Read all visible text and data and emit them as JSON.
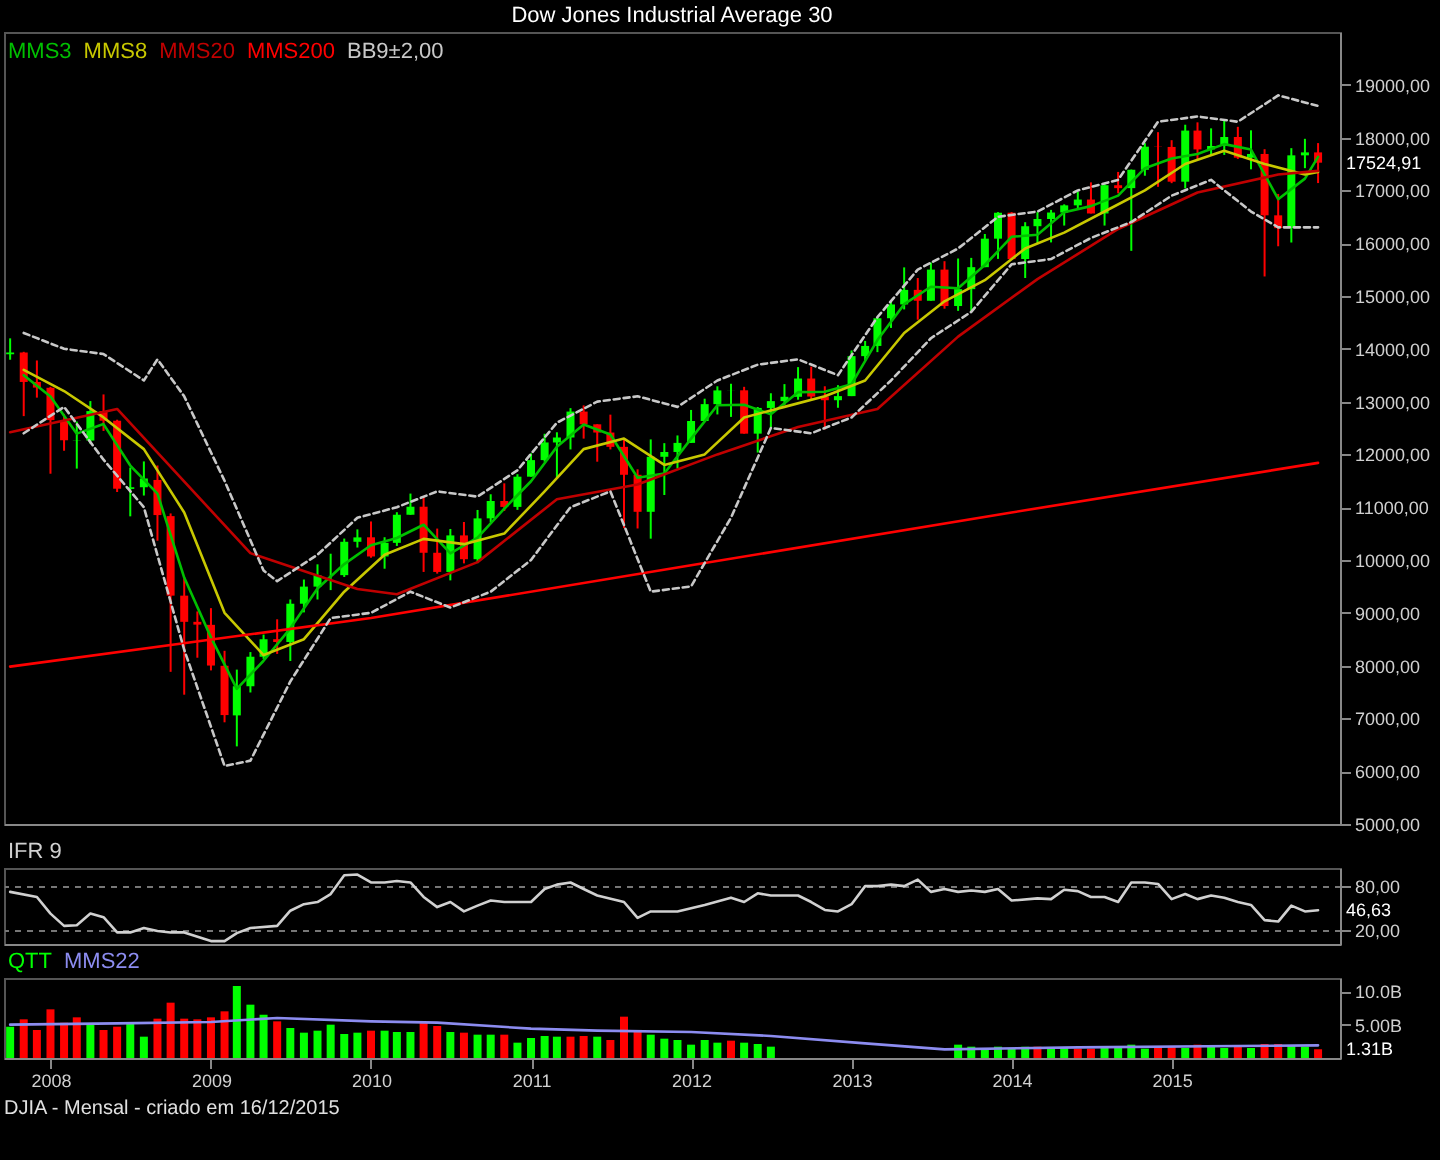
{
  "chart_data": [
    {
      "type": "candlestick",
      "title": "Dow Jones Industrial Average 30",
      "legend": "top left",
      "tick_labels": "y",
      "xlim": [
        "2007-09-17",
        "2016-01-20"
      ],
      "xticks": [
        "2008",
        "2009",
        "2010",
        "2011",
        "2012",
        "2013",
        "2014",
        "2015"
      ],
      "ylim": [
        5000,
        20000
      ],
      "yticks": [
        {
          "value": 5000,
          "label": "5000,00"
        },
        {
          "value": 6000,
          "label": "6000,00"
        },
        {
          "value": 7000,
          "label": "7000,00"
        },
        {
          "value": 8000,
          "label": "8000,00"
        },
        {
          "value": 9000,
          "label": "9000,00"
        },
        {
          "value": 10000,
          "label": "10000,00"
        },
        {
          "value": 11000,
          "label": "11000,00"
        },
        {
          "value": 12000,
          "label": "12000,00"
        },
        {
          "value": 13000,
          "label": "13000,00"
        },
        {
          "value": 14000,
          "label": "14000,00"
        },
        {
          "value": 15000,
          "label": "15000,00"
        },
        {
          "value": 16000,
          "label": "16000,00"
        },
        {
          "value": 17000,
          "label": "17000,00"
        },
        {
          "value": 18000,
          "label": "18000,00"
        },
        {
          "value": 19000,
          "label": "19000,00"
        }
      ],
      "x": [
        "2007-10",
        "2007-11",
        "2007-12",
        "2008-01",
        "2008-02",
        "2008-03",
        "2008-04",
        "2008-05",
        "2008-06",
        "2008-07",
        "2008-08",
        "2008-09",
        "2008-10",
        "2008-11",
        "2008-12",
        "2009-01",
        "2009-02",
        "2009-03",
        "2009-04",
        "2009-05",
        "2009-06",
        "2009-07",
        "2009-08",
        "2009-09",
        "2009-10",
        "2009-11",
        "2009-12",
        "2010-01",
        "2010-02",
        "2010-03",
        "2010-04",
        "2010-05",
        "2010-06",
        "2010-07",
        "2010-08",
        "2010-09",
        "2010-10",
        "2010-11",
        "2010-12",
        "2011-01",
        "2011-02",
        "2011-03",
        "2011-04",
        "2011-05",
        "2011-06",
        "2011-07",
        "2011-08",
        "2011-09",
        "2011-10",
        "2011-11",
        "2011-12",
        "2012-01",
        "2012-02",
        "2012-03",
        "2012-04",
        "2012-05",
        "2012-06",
        "2012-07",
        "2012-08",
        "2012-09",
        "2012-10",
        "2012-11",
        "2012-12",
        "2013-01",
        "2013-02",
        "2013-03",
        "2013-04",
        "2013-05",
        "2013-06",
        "2013-07",
        "2013-08",
        "2013-09",
        "2013-10",
        "2013-11",
        "2013-12",
        "2014-01",
        "2014-02",
        "2014-03",
        "2014-04",
        "2014-05",
        "2014-06",
        "2014-07",
        "2014-08",
        "2014-09",
        "2014-10",
        "2014-11",
        "2014-12",
        "2015-01",
        "2015-02",
        "2015-03",
        "2015-04",
        "2015-05",
        "2015-06",
        "2015-07",
        "2015-08",
        "2015-09",
        "2015-10",
        "2015-11",
        "2015-12"
      ],
      "ohlc": [
        [
          13896,
          14198,
          13793,
          13930
        ],
        [
          13930,
          13943,
          12725,
          13372
        ],
        [
          13372,
          13779,
          13075,
          13265
        ],
        [
          13262,
          13279,
          11634,
          12650
        ],
        [
          12638,
          12767,
          12069,
          12266
        ],
        [
          12258,
          12622,
          11731,
          12263
        ],
        [
          12262,
          13010,
          12200,
          12820
        ],
        [
          12820,
          13136,
          12444,
          12638
        ],
        [
          12638,
          12657,
          11288,
          11350
        ],
        [
          11346,
          11750,
          10827,
          11378
        ],
        [
          11378,
          11867,
          11221,
          11544
        ],
        [
          11516,
          11790,
          10365,
          10851
        ],
        [
          10831,
          10882,
          7882,
          9325
        ],
        [
          9325,
          9654,
          7449,
          8829
        ],
        [
          8829,
          9026,
          8149,
          8776
        ],
        [
          8772,
          9088,
          7909,
          8001
        ],
        [
          7996,
          8280,
          6926,
          7063
        ],
        [
          7057,
          7924,
          6470,
          7609
        ],
        [
          7609,
          8256,
          7491,
          8168
        ],
        [
          8168,
          8588,
          8128,
          8500
        ],
        [
          8500,
          8877,
          8221,
          8447
        ],
        [
          8447,
          9253,
          8087,
          9172
        ],
        [
          9172,
          9630,
          9008,
          9496
        ],
        [
          9496,
          9918,
          9252,
          9712
        ],
        [
          9712,
          10119,
          9430,
          9713
        ],
        [
          9713,
          10406,
          9679,
          10345
        ],
        [
          10345,
          10580,
          10236,
          10428
        ],
        [
          10430,
          10730,
          10043,
          10067
        ],
        [
          10067,
          10431,
          9835,
          10325
        ],
        [
          10325,
          10905,
          10266,
          10857
        ],
        [
          10857,
          11258,
          10856,
          11009
        ],
        [
          11009,
          11205,
          9774,
          10137
        ],
        [
          10137,
          10595,
          9742,
          9774
        ],
        [
          9774,
          10588,
          9614,
          10466
        ],
        [
          10466,
          10720,
          9936,
          10015
        ],
        [
          10015,
          10948,
          9941,
          10788
        ],
        [
          10789,
          11245,
          10712,
          11118
        ],
        [
          11118,
          11452,
          10929,
          11006
        ],
        [
          11006,
          11625,
          10950,
          11578
        ],
        [
          11578,
          12021,
          11578,
          11892
        ],
        [
          11892,
          12391,
          11861,
          12226
        ],
        [
          12226,
          12419,
          11555,
          12320
        ],
        [
          12320,
          12876,
          12094,
          12811
        ],
        [
          12811,
          12928,
          12299,
          12570
        ],
        [
          12570,
          12570,
          11862,
          12414
        ],
        [
          12414,
          12753,
          12094,
          12143
        ],
        [
          12143,
          12284,
          10605,
          11614
        ],
        [
          11614,
          11717,
          10597,
          10913
        ],
        [
          10913,
          12284,
          10404,
          11955
        ],
        [
          11955,
          12213,
          11231,
          12046
        ],
        [
          12046,
          12359,
          11735,
          12218
        ],
        [
          12218,
          12842,
          12218,
          12633
        ],
        [
          12633,
          13055,
          12621,
          12952
        ],
        [
          12952,
          13290,
          12757,
          13212
        ],
        [
          13212,
          13338,
          12710,
          13214
        ],
        [
          13214,
          13280,
          12392,
          12393
        ],
        [
          12393,
          12898,
          12035,
          12880
        ],
        [
          12880,
          13158,
          12492,
          13009
        ],
        [
          13009,
          13331,
          12935,
          13091
        ],
        [
          13091,
          13653,
          13036,
          13437
        ],
        [
          13437,
          13662,
          13029,
          13096
        ],
        [
          13096,
          13290,
          12471,
          13026
        ],
        [
          13026,
          13311,
          12883,
          13104
        ],
        [
          13104,
          13969,
          13104,
          13861
        ],
        [
          13861,
          14149,
          13784,
          14054
        ],
        [
          14054,
          14585,
          13937,
          14579
        ],
        [
          14579,
          14887,
          14395,
          14840
        ],
        [
          14840,
          15542,
          14746,
          15116
        ],
        [
          15116,
          15340,
          14551,
          14910
        ],
        [
          14910,
          15634,
          14910,
          15500
        ],
        [
          15500,
          15659,
          14760,
          14810
        ],
        [
          14810,
          15710,
          14719,
          15130
        ],
        [
          15130,
          15722,
          14719,
          15546
        ],
        [
          15546,
          16174,
          15546,
          16086
        ],
        [
          16086,
          16588,
          15703,
          16577
        ],
        [
          16577,
          16589,
          15699,
          15699
        ],
        [
          15699,
          16398,
          15341,
          16322
        ],
        [
          16322,
          16588,
          15984,
          16458
        ],
        [
          16458,
          16631,
          16015,
          16581
        ],
        [
          16581,
          16736,
          16334,
          16717
        ],
        [
          16717,
          16978,
          16663,
          16827
        ],
        [
          16827,
          17152,
          16563,
          16563
        ],
        [
          16563,
          17122,
          16334,
          17098
        ],
        [
          17098,
          17350,
          16945,
          17043
        ],
        [
          17043,
          17395,
          15855,
          17391
        ],
        [
          17391,
          17895,
          17278,
          17828
        ],
        [
          17828,
          18103,
          17068,
          17823
        ],
        [
          17823,
          17951,
          17137,
          17165
        ],
        [
          17165,
          18244,
          17038,
          18133
        ],
        [
          18133,
          18289,
          17585,
          17776
        ],
        [
          17776,
          18175,
          17664,
          17841
        ],
        [
          17841,
          18351,
          17672,
          18011
        ],
        [
          18011,
          18204,
          17596,
          17620
        ],
        [
          17620,
          18138,
          17399,
          17690
        ],
        [
          17690,
          17780,
          15370,
          16528
        ],
        [
          16528,
          16933,
          15942,
          16285
        ],
        [
          16285,
          17800,
          16013,
          17664
        ],
        [
          17664,
          17977,
          17421,
          17720
        ],
        [
          17720,
          17896,
          17139,
          17524.91
        ]
      ],
      "series": [
        {
          "name": "MMS3",
          "type": "line",
          "color": "#00c000",
          "x": [
            "2007-11",
            "2008-01",
            "2008-03",
            "2008-05",
            "2008-07",
            "2008-09",
            "2008-11",
            "2009-01",
            "2009-03",
            "2009-05",
            "2009-07",
            "2009-09",
            "2009-11",
            "2010-01",
            "2010-03",
            "2010-05",
            "2010-07",
            "2010-09",
            "2010-11",
            "2011-01",
            "2011-03",
            "2011-05",
            "2011-07",
            "2011-09",
            "2011-11",
            "2012-01",
            "2012-03",
            "2012-05",
            "2012-07",
            "2012-09",
            "2012-11",
            "2013-01",
            "2013-03",
            "2013-05",
            "2013-07",
            "2013-09",
            "2013-11",
            "2014-01",
            "2014-03",
            "2014-05",
            "2014-07",
            "2014-09",
            "2014-11",
            "2015-01",
            "2015-03",
            "2015-05",
            "2015-07",
            "2015-09",
            "2015-11",
            "2015-12"
          ],
          "values": [
            13500,
            13096,
            12393,
            12574,
            11789,
            11258,
            9668,
            8535,
            7558,
            8092,
            8706,
            9460,
            9923,
            10280,
            10416,
            10668,
            10126,
            10423,
            10971,
            11492,
            12146,
            12567,
            12376,
            11557,
            11638,
            12299,
            12932,
            12940,
            12761,
            13179,
            13186,
            13330,
            14165,
            14845,
            15175,
            15147,
            15587,
            16121,
            16160,
            16585,
            16702,
            16901,
            17421,
            17605,
            17691,
            17876,
            17774,
            16834,
            17223,
            17636
          ]
        },
        {
          "name": "MMS8",
          "type": "line",
          "color": "#c8c800",
          "x": [
            "2007-11",
            "2008-02",
            "2008-05",
            "2008-08",
            "2008-11",
            "2009-02",
            "2009-05",
            "2009-08",
            "2009-11",
            "2010-02",
            "2010-05",
            "2010-08",
            "2010-11",
            "2011-02",
            "2011-05",
            "2011-08",
            "2011-11",
            "2012-02",
            "2012-05",
            "2012-08",
            "2012-11",
            "2013-02",
            "2013-05",
            "2013-08",
            "2013-11",
            "2014-02",
            "2014-05",
            "2014-08",
            "2014-11",
            "2015-02",
            "2015-05",
            "2015-08",
            "2015-11",
            "2015-12"
          ],
          "values": [
            13600,
            13200,
            12700,
            12100,
            10900,
            9000,
            8200,
            8500,
            9400,
            10100,
            10400,
            10300,
            10500,
            11300,
            12100,
            12300,
            11800,
            12000,
            12700,
            12900,
            13100,
            13400,
            14300,
            14900,
            15300,
            15900,
            16200,
            16600,
            17000,
            17500,
            17750,
            17500,
            17300,
            17350
          ]
        },
        {
          "name": "MMS20",
          "type": "line",
          "color": "#c00000",
          "x": [
            "2007-10",
            "2008-06",
            "2009-04",
            "2009-12",
            "2010-03",
            "2010-09",
            "2011-03",
            "2011-09",
            "2012-03",
            "2012-09",
            "2013-03",
            "2013-09",
            "2014-03",
            "2014-09",
            "2015-03",
            "2015-09",
            "2015-12"
          ],
          "values": [
            12420,
            12860,
            10130,
            9450,
            9350,
            9960,
            11150,
            11430,
            12000,
            12520,
            12860,
            14230,
            15320,
            16270,
            16960,
            17300,
            17370
          ]
        },
        {
          "name": "MMS200",
          "type": "line",
          "color": "#ff0000",
          "x": [
            "2007-10",
            "2010-01",
            "2012-01",
            "2014-01",
            "2015-12"
          ],
          "values": [
            7980,
            8900,
            9900,
            10900,
            11840
          ]
        },
        {
          "name": "BB9±2,00",
          "type": "line",
          "color": "#c8c8c8",
          "line_style": "dashed",
          "x": [
            "2007-11",
            "2008-02",
            "2008-05",
            "2008-08",
            "2008-09",
            "2008-11",
            "2009-02",
            "2009-05",
            "2009-06",
            "2009-09",
            "2009-12",
            "2010-03",
            "2010-06",
            "2010-09",
            "2010-12",
            "2011-03",
            "2011-06",
            "2011-09",
            "2011-12",
            "2012-03",
            "2012-06",
            "2012-09",
            "2012-12",
            "2013-03",
            "2013-06",
            "2013-09",
            "2013-12",
            "2014-03",
            "2014-06",
            "2014-09",
            "2014-12",
            "2015-03",
            "2015-06",
            "2015-09",
            "2015-12"
          ],
          "values": [
            14300,
            14000,
            13900,
            13400,
            13800,
            13100,
            11500,
            9800,
            9600,
            10100,
            10800,
            11000,
            11300,
            11200,
            11700,
            12600,
            13000,
            13100,
            12900,
            13400,
            13700,
            13800,
            13500,
            14600,
            15500,
            15900,
            16500,
            16600,
            17000,
            17200,
            18300,
            18400,
            18300,
            18800,
            18600
          ]
        },
        {
          "type": "line",
          "color": "#c8c8c8",
          "line_style": "dashed",
          "x": [
            "2007-11",
            "2008-02",
            "2008-05",
            "2008-08",
            "2008-11",
            "2009-02",
            "2009-04",
            "2009-07",
            "2009-10",
            "2010-01",
            "2010-04",
            "2010-07",
            "2010-10",
            "2011-01",
            "2011-04",
            "2011-07",
            "2011-10",
            "2012-01",
            "2012-04",
            "2012-07",
            "2012-10",
            "2013-01",
            "2013-04",
            "2013-07",
            "2013-10",
            "2014-01",
            "2014-04",
            "2014-07",
            "2014-10",
            "2015-01",
            "2015-04",
            "2015-07",
            "2015-09",
            "2015-12"
          ],
          "values": [
            12400,
            12900,
            11900,
            11000,
            8300,
            6100,
            6200,
            7700,
            8900,
            9000,
            9400,
            9100,
            9400,
            10000,
            11000,
            11300,
            9400,
            9500,
            10800,
            12500,
            12400,
            12700,
            13400,
            14200,
            14700,
            15600,
            15700,
            16100,
            16400,
            16900,
            17200,
            16600,
            16300,
            16300
          ]
        }
      ],
      "annotations": [
        {
          "text": "17524,91",
          "x": "2015-12",
          "y": 17524.91
        }
      ]
    },
    {
      "type": "line",
      "legend": "top left",
      "tick_labels": "y",
      "grid": "y",
      "xlim": [
        "2007-09-17",
        "2016-01-20"
      ],
      "xticks": [
        "2008",
        "2009",
        "2010",
        "2011",
        "2012",
        "2013",
        "2014",
        "2015"
      ],
      "ylim": [
        0,
        105
      ],
      "yticks": [
        {
          "value": 20,
          "label": "20,00"
        },
        {
          "value": 80,
          "label": "80,00"
        }
      ],
      "series": [
        {
          "name": "IFR 9",
          "color": "#d0d0d0",
          "x": [
            "2007-10",
            "2007-12",
            "2008-01",
            "2008-02",
            "2008-03",
            "2008-04",
            "2008-05",
            "2008-06",
            "2008-07",
            "2008-08",
            "2008-09",
            "2008-10",
            "2008-11",
            "2009-01",
            "2009-02",
            "2009-03",
            "2009-04",
            "2009-06",
            "2009-07",
            "2009-08",
            "2009-09",
            "2009-10",
            "2009-11",
            "2009-12",
            "2010-01",
            "2010-02",
            "2010-03",
            "2010-04",
            "2010-05",
            "2010-06",
            "2010-07",
            "2010-08",
            "2010-09",
            "2010-10",
            "2010-11",
            "2011-01",
            "2011-02",
            "2011-03",
            "2011-04",
            "2011-05",
            "2011-06",
            "2011-08",
            "2011-09",
            "2011-10",
            "2011-11",
            "2011-12",
            "2012-02",
            "2012-04",
            "2012-05",
            "2012-06",
            "2012-07",
            "2012-09",
            "2012-10",
            "2012-11",
            "2012-12",
            "2013-01",
            "2013-02",
            "2013-03",
            "2013-04",
            "2013-05",
            "2013-06",
            "2013-07",
            "2013-08",
            "2013-09",
            "2013-10",
            "2013-11",
            "2013-12",
            "2014-01",
            "2014-03",
            "2014-04",
            "2014-05",
            "2014-06",
            "2014-07",
            "2014-08",
            "2014-09",
            "2014-10",
            "2014-11",
            "2014-12",
            "2015-01",
            "2015-02",
            "2015-03",
            "2015-04",
            "2015-05",
            "2015-06",
            "2015-07",
            "2015-08",
            "2015-09",
            "2015-10",
            "2015-11",
            "2015-12"
          ],
          "values": [
            72,
            65,
            42,
            25,
            26,
            42,
            37,
            16,
            16,
            22,
            18,
            16,
            16,
            4,
            4,
            15,
            22,
            25,
            46,
            55,
            58,
            69,
            95,
            96,
            85,
            85,
            87,
            85,
            65,
            51,
            58,
            45,
            53,
            60,
            58,
            58,
            76,
            82,
            85,
            76,
            67,
            58,
            36,
            45,
            45,
            45,
            54,
            64,
            58,
            70,
            67,
            67,
            58,
            47,
            45,
            55,
            80,
            80,
            82,
            80,
            89,
            72,
            76,
            72,
            74,
            72,
            76,
            60,
            63,
            62,
            75,
            73,
            65,
            65,
            58,
            85,
            85,
            83,
            62,
            69,
            62,
            67,
            64,
            58,
            54,
            33,
            31,
            53,
            45,
            46.63
          ]
        }
      ],
      "annotations": [
        {
          "text": "46,63",
          "x": "2015-12",
          "y": 46.63
        }
      ]
    },
    {
      "type": "bar",
      "legend": "top left",
      "xlim": [
        "2007-09-17",
        "2016-01-20"
      ],
      "xticks": [
        "2008",
        "2009",
        "2010",
        "2011",
        "2012",
        "2013",
        "2014",
        "2015"
      ],
      "ylim": [
        0,
        12
      ],
      "yticks": [
        {
          "value": 5,
          "label": "5.00B"
        },
        {
          "value": 10,
          "label": "10.0B"
        }
      ],
      "x": [
        "2007-10",
        "2007-11",
        "2007-12",
        "2008-01",
        "2008-02",
        "2008-03",
        "2008-04",
        "2008-05",
        "2008-06",
        "2008-07",
        "2008-08",
        "2008-09",
        "2008-10",
        "2008-11",
        "2008-12",
        "2009-01",
        "2009-02",
        "2009-03",
        "2009-04",
        "2009-05",
        "2009-06",
        "2009-07",
        "2009-08",
        "2009-09",
        "2009-10",
        "2009-11",
        "2009-12",
        "2010-01",
        "2010-02",
        "2010-03",
        "2010-04",
        "2010-05",
        "2010-06",
        "2010-07",
        "2010-08",
        "2010-09",
        "2010-10",
        "2010-11",
        "2010-12",
        "2011-01",
        "2011-02",
        "2011-03",
        "2011-04",
        "2011-05",
        "2011-06",
        "2011-07",
        "2011-08",
        "2011-09",
        "2011-10",
        "2011-11",
        "2011-12",
        "2012-01",
        "2012-02",
        "2012-03",
        "2012-04",
        "2012-05",
        "2012-06",
        "2012-07",
        "2012-08",
        "2012-09",
        "2012-10",
        "2012-11",
        "2012-12",
        "2013-01",
        "2013-02",
        "2013-03",
        "2013-04",
        "2013-05",
        "2013-06",
        "2013-07",
        "2013-08",
        "2013-09",
        "2013-10",
        "2013-11",
        "2013-12",
        "2014-01",
        "2014-02",
        "2014-03",
        "2014-04",
        "2014-05",
        "2014-06",
        "2014-07",
        "2014-08",
        "2014-09",
        "2014-10",
        "2014-11",
        "2014-12",
        "2015-01",
        "2015-02",
        "2015-03",
        "2015-04",
        "2015-05",
        "2015-06",
        "2015-07",
        "2015-08",
        "2015-09",
        "2015-10",
        "2015-11",
        "2015-12"
      ],
      "series": [
        {
          "name": "QTT",
          "type": "bar",
          "color": "#00ff00",
          "values": [
            4.7,
            5.8,
            4.2,
            7.3,
            5.3,
            6.1,
            5.0,
            4.2,
            4.7,
            5.2,
            3.2,
            5.9,
            8.3,
            5.9,
            5.8,
            6.1,
            7.0,
            10.8,
            8.0,
            6.5,
            5.5,
            4.5,
            3.8,
            4.1,
            5.0,
            3.6,
            3.8,
            4.1,
            4.1,
            3.9,
            3.9,
            5.3,
            4.8,
            3.9,
            3.8,
            3.5,
            3.5,
            3.5,
            2.3,
            3.0,
            3.3,
            3.2,
            3.2,
            3.3,
            3.2,
            2.7,
            6.2,
            4.1,
            3.5,
            2.9,
            2.7,
            2.0,
            2.7,
            2.3,
            2.6,
            2.3,
            2.1,
            1.7,
            null,
            null,
            null,
            null,
            null,
            null,
            null,
            null,
            null,
            null,
            null,
            null,
            null,
            2.0,
            1.7,
            1.4,
            1.7,
            1.5,
            1.7,
            1.7,
            1.5,
            1.5,
            1.4,
            1.4,
            1.5,
            1.7,
            2.0,
            1.4,
            1.7,
            1.7,
            1.5,
            2.0,
            1.7,
            1.5,
            1.7,
            1.5,
            2.1,
            2.1,
            1.8,
            1.7,
            1.31
          ],
          "colors": [
            "#00ff00",
            "#ff0000",
            "#ff0000",
            "#ff0000",
            "#ff0000",
            "#ff0000",
            "#00ff00",
            "#ff0000",
            "#ff0000",
            "#00ff00",
            "#00ff00",
            "#ff0000",
            "#ff0000",
            "#ff0000",
            "#ff0000",
            "#ff0000",
            "#ff0000",
            "#00ff00",
            "#00ff00",
            "#00ff00",
            "#ff0000",
            "#00ff00",
            "#00ff00",
            "#00ff00",
            "#00ff00",
            "#00ff00",
            "#00ff00",
            "#ff0000",
            "#00ff00",
            "#00ff00",
            "#00ff00",
            "#ff0000",
            "#ff0000",
            "#00ff00",
            "#ff0000",
            "#00ff00",
            "#00ff00",
            "#ff0000",
            "#00ff00",
            "#00ff00",
            "#00ff00",
            "#00ff00",
            "#ff0000",
            "#ff0000",
            "#00ff00",
            "#ff0000",
            "#ff0000",
            "#ff0000",
            "#00ff00",
            "#00ff00",
            "#00ff00",
            "#00ff00",
            "#00ff00",
            "#00ff00",
            "#ff0000",
            "#00ff00",
            "#00ff00",
            "#00ff00",
            null,
            null,
            null,
            null,
            null,
            null,
            null,
            null,
            null,
            null,
            null,
            null,
            null,
            "#00ff00",
            "#00ff00",
            "#00ff00",
            "#00ff00",
            "#00ff00",
            "#00ff00",
            "#ff0000",
            "#00ff00",
            "#00ff00",
            "#ff0000",
            "#ff0000",
            "#00ff00",
            "#00ff00",
            "#00ff00",
            "#00ff00",
            "#ff0000",
            "#ff0000",
            "#00ff00",
            "#ff0000",
            "#00ff00",
            "#00ff00",
            "#ff0000",
            "#00ff00",
            "#ff0000",
            "#ff0000",
            "#00ff00",
            "#00ff00",
            "#ff0000"
          ]
        },
        {
          "name": "MMS22",
          "type": "line",
          "color": "#8c8cf0",
          "x": [
            "2007-10",
            "2008-06",
            "2009-01",
            "2009-06",
            "2010-01",
            "2010-06",
            "2011-01",
            "2011-06",
            "2012-01",
            "2012-07",
            "2013-02",
            "2013-08",
            "2014-06",
            "2015-06",
            "2015-12"
          ],
          "values": [
            5.0,
            5.2,
            5.4,
            6.0,
            5.5,
            5.3,
            4.4,
            4.1,
            3.9,
            3.3,
            2.2,
            1.3,
            1.6,
            1.8,
            1.9
          ]
        }
      ],
      "annotations": [
        {
          "text": "1.31B",
          "x": "2015-12",
          "y": 1.31
        },
        "DJIA - Mensal - criado em 16/12/2015"
      ]
    }
  ]
}
